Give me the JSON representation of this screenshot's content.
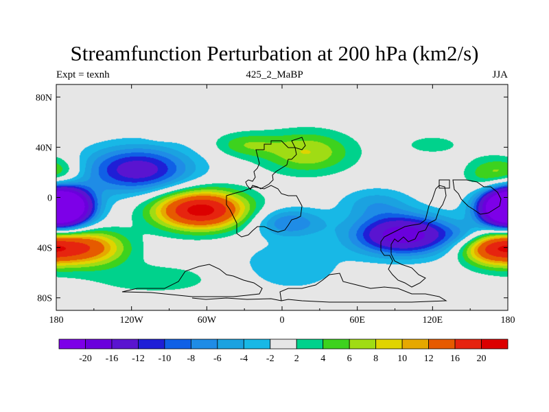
{
  "chart_data": {
    "type": "heatmap",
    "title": "Streamfunction Perturbation at 200 hPa (km2/s)",
    "subtitle_left": "Expt = texnh",
    "subtitle_center": "425_2_MaBP",
    "subtitle_right": "JJA",
    "x_ticks": [
      {
        "value": -180,
        "label": "180"
      },
      {
        "value": -120,
        "label": "120W"
      },
      {
        "value": -60,
        "label": "60W"
      },
      {
        "value": 0,
        "label": "0"
      },
      {
        "value": 60,
        "label": "60E"
      },
      {
        "value": 120,
        "label": "120E"
      },
      {
        "value": 180,
        "label": "180"
      }
    ],
    "y_ticks": [
      {
        "value": 80,
        "label": "80N"
      },
      {
        "value": 40,
        "label": "40N"
      },
      {
        "value": 0,
        "label": "0"
      },
      {
        "value": -40,
        "label": "40S"
      },
      {
        "value": -80,
        "label": "80S"
      }
    ],
    "xlim": [
      -180,
      180
    ],
    "ylim": [
      -90,
      90
    ],
    "colorbar": {
      "levels": [
        "-20",
        "-16",
        "-12",
        "-10",
        "-8",
        "-6",
        "-4",
        "-2",
        "2",
        "4",
        "6",
        "8",
        "10",
        "12",
        "16",
        "20"
      ],
      "colors": [
        "#7d00e8",
        "#6a00dc",
        "#5a14d0",
        "#1f1fd6",
        "#1060e6",
        "#1f8ce6",
        "#1ba2e0",
        "#18b8e6",
        "#e6e6e6",
        "#00d28c",
        "#3dd21e",
        "#a0dc14",
        "#e0d400",
        "#e6a800",
        "#e65a00",
        "#e6240f",
        "#dc0000"
      ]
    },
    "features": [
      {
        "lon": -115,
        "lat": 22,
        "sx": 30,
        "sy": 13,
        "amp": -14
      },
      {
        "lon": -65,
        "lat": -10,
        "sx": 26,
        "sy": 11,
        "amp": 22
      },
      {
        "lon": -158,
        "lat": -40,
        "sx": 23,
        "sy": 10,
        "amp": 15
      },
      {
        "lon": -175,
        "lat": -8,
        "sx": 17,
        "sy": 11,
        "amp": -22
      },
      {
        "lon": 180,
        "lat": -8,
        "sx": 15,
        "sy": 11,
        "amp": -22
      },
      {
        "lon": 168,
        "lat": -40,
        "sx": 18,
        "sy": 10,
        "amp": 15
      },
      {
        "lon": 97,
        "lat": -30,
        "sx": 28,
        "sy": 11,
        "amp": -19
      },
      {
        "lon": 5,
        "lat": -20,
        "sx": 20,
        "sy": 8,
        "amp": -8
      },
      {
        "lon": 75,
        "lat": -5,
        "sx": 20,
        "sy": 9,
        "amp": -5
      },
      {
        "lon": 20,
        "lat": 36,
        "sx": 26,
        "sy": 12,
        "amp": 8
      },
      {
        "lon": -30,
        "lat": 42,
        "sx": 18,
        "sy": 7,
        "amp": 5
      },
      {
        "lon": 120,
        "lat": 42,
        "sx": 18,
        "sy": 6,
        "amp": 3
      },
      {
        "lon": 165,
        "lat": 18,
        "sx": 14,
        "sy": 10,
        "amp": 6
      },
      {
        "lon": -175,
        "lat": 20,
        "sx": 12,
        "sy": 9,
        "amp": 5
      },
      {
        "lon": -95,
        "lat": 50,
        "sx": 8,
        "sy": 3,
        "amp": 3
      },
      {
        "lon": -100,
        "lat": -65,
        "sx": 45,
        "sy": 10,
        "amp": 3
      },
      {
        "lon": 5,
        "lat": -55,
        "sx": 30,
        "sy": 14,
        "amp": -4
      },
      {
        "lon": 150,
        "lat": -30,
        "sx": 15,
        "sy": 6,
        "amp": -4
      }
    ]
  }
}
